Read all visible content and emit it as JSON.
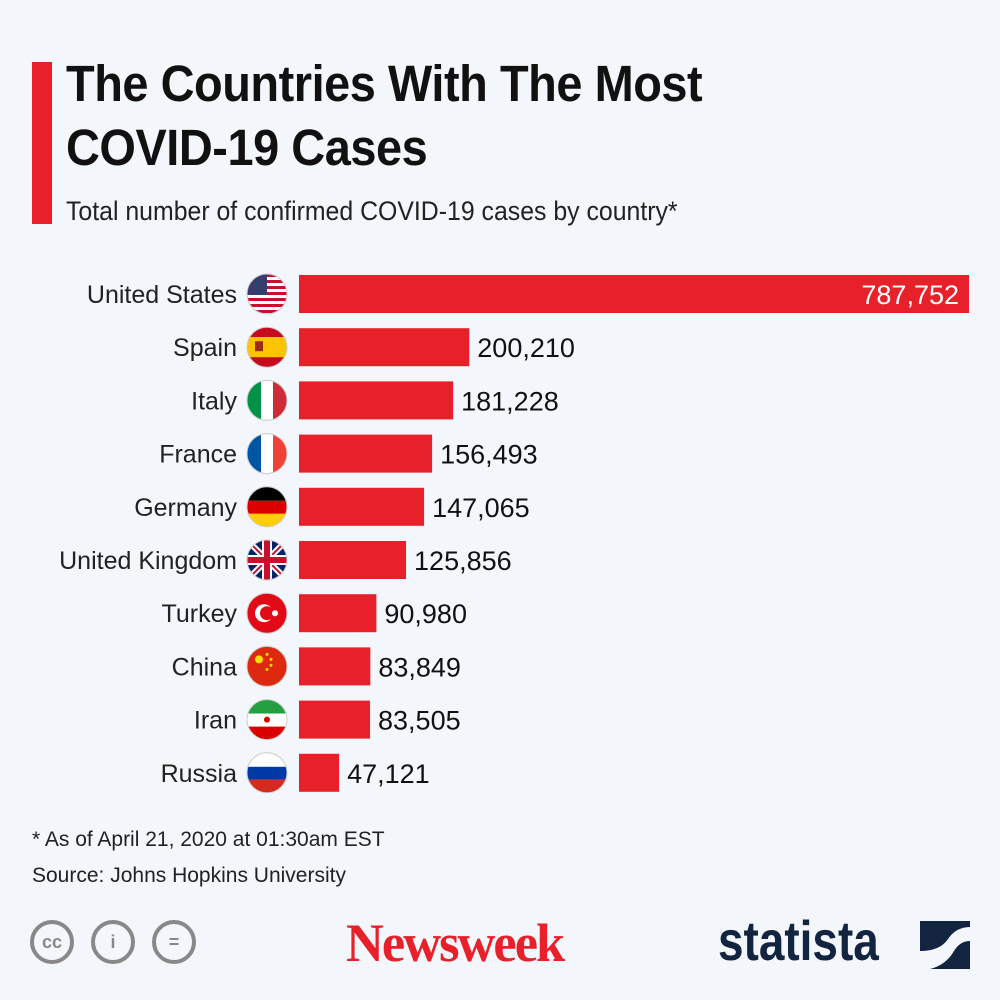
{
  "title": "The Countries With The Most COVID-19 Cases",
  "subtitle": "Total number of confirmed COVID-19 cases by country*",
  "chart_data": {
    "type": "bar",
    "orientation": "horizontal",
    "categories": [
      "United States",
      "Spain",
      "Italy",
      "France",
      "Germany",
      "United Kingdom",
      "Turkey",
      "China",
      "Iran",
      "Russia"
    ],
    "values": [
      787752,
      200210,
      181228,
      156493,
      147065,
      125856,
      90980,
      83849,
      83505,
      47121
    ],
    "labels": [
      "787,752",
      "200,210",
      "181,228",
      "156,493",
      "147,065",
      "125,856",
      "90,980",
      "83,849",
      "83,505",
      "47,121"
    ],
    "flags": [
      "us-flag",
      "spain-flag",
      "italy-flag",
      "france-flag",
      "germany-flag",
      "uk-flag",
      "turkey-flag",
      "china-flag",
      "iran-flag",
      "russia-flag"
    ],
    "bar_color": "#e8202a",
    "grid": false
  },
  "footnote": "* As of April 21, 2020 at 01:30am EST",
  "source": "Source: Johns Hopkins University",
  "logos": {
    "newsweek": "Newsweek",
    "statista": "statista",
    "license": [
      "cc",
      "by",
      "nd"
    ]
  }
}
